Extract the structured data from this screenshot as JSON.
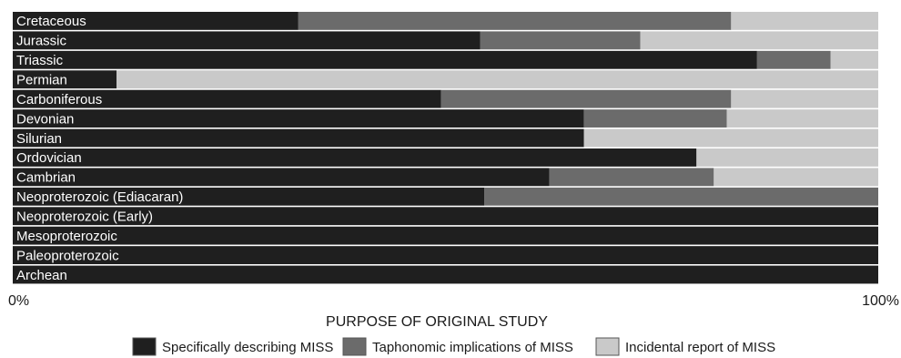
{
  "chart_data": {
    "type": "bar",
    "orientation": "horizontal",
    "stacked": true,
    "value_unit": "percent",
    "xlim": [
      0,
      100
    ],
    "x_tick_labels": [
      "0%",
      "100%"
    ],
    "xlabel": "PURPOSE OF ORIGINAL STUDY",
    "legend_position": "bottom",
    "grid": false,
    "categories": [
      "Cretaceous",
      "Jurassic",
      "Triassic",
      "Permian",
      "Carboniferous",
      "Devonian",
      "Silurian",
      "Ordovician",
      "Cambrian",
      "Neoproterozoic (Ediacaran)",
      "Neoproterozoic (Early)",
      "Mesoproterozoic",
      "Paleoproterozoic",
      "Archean"
    ],
    "series": [
      {
        "name": "Specifically describing MISS",
        "color": "#1f1f1f",
        "values": [
          33,
          54,
          86,
          12,
          49.5,
          66,
          66,
          79,
          62,
          54.5,
          100,
          100,
          100,
          100
        ]
      },
      {
        "name": "Taphonomic implications of MISS",
        "color": "#6b6b6b",
        "values": [
          50,
          18.5,
          8.5,
          0,
          33.5,
          16.5,
          0,
          0,
          19,
          45.5,
          0,
          0,
          0,
          0
        ]
      },
      {
        "name": "Incidental report of MISS",
        "color": "#c9c9c9",
        "values": [
          17,
          27.5,
          5.5,
          88,
          17,
          17.5,
          34,
          21,
          19,
          0,
          0,
          0,
          0,
          0
        ]
      }
    ]
  }
}
